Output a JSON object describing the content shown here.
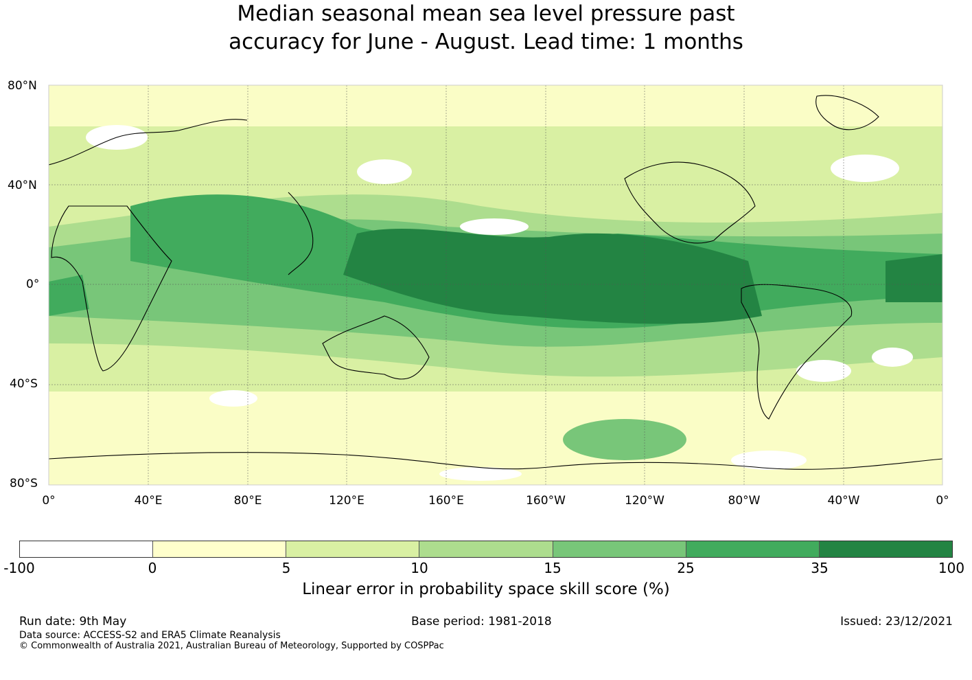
{
  "title": {
    "line1": "Median seasonal mean sea level pressure past",
    "line2": "accuracy for June - August. Lead time: 1 months"
  },
  "map": {
    "lat_labels": [
      "80°N",
      "40°N",
      "0°",
      "40°S",
      "80°S"
    ],
    "lon_labels": [
      "0°",
      "40°E",
      "80°E",
      "120°E",
      "160°E",
      "160°W",
      "120°W",
      "80°W",
      "40°W",
      "0°"
    ],
    "colors": {
      "lt0": "#ffffff",
      "c0_5": "#ffffcc",
      "c5_10": "#d9f0a3",
      "c10_15": "#addd8e",
      "c15_25": "#78c679",
      "c25_35": "#41ab5d",
      "c35_100": "#238443"
    }
  },
  "colorbar": {
    "ticks": [
      "-100",
      "0",
      "5",
      "10",
      "15",
      "25",
      "35",
      "100"
    ],
    "colors": [
      "#ffffff",
      "#ffffcc",
      "#d9f0a3",
      "#addd8e",
      "#78c679",
      "#41ab5d",
      "#238443"
    ],
    "label": "Linear error in probability space skill score (%)"
  },
  "footer": {
    "run_date": "Run date: 9th May",
    "base_period": "Base period: 1981-2018",
    "issued": "Issued: 23/12/2021",
    "data_source": "Data source: ACCESS-S2 and ERA5 Climate Reanalysis",
    "copyright": "© Commonwealth of Australia 2021, Australian Bureau of Meteorology, Supported by COSPPac"
  }
}
